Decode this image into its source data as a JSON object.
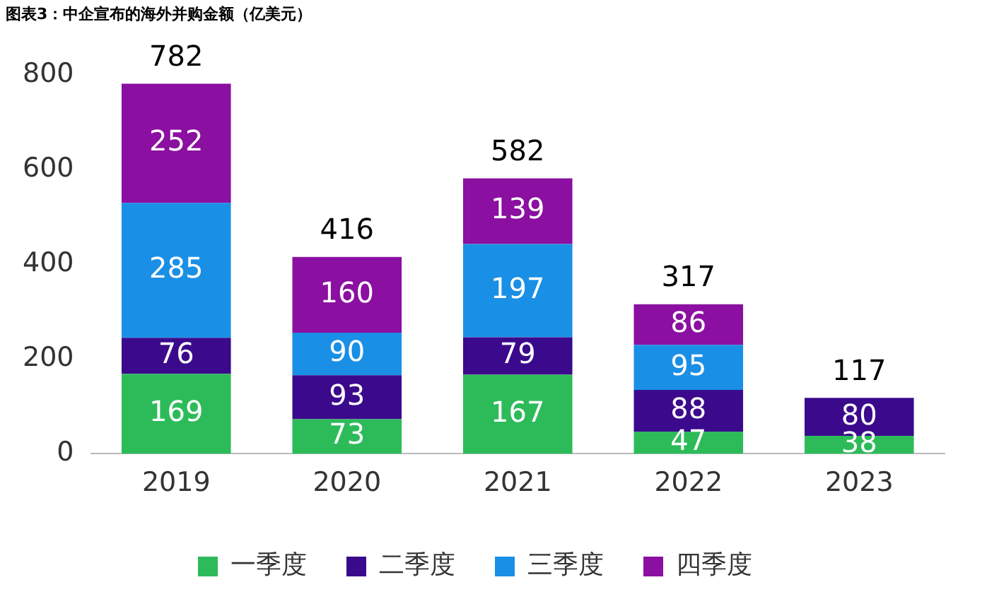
{
  "chart_data": {
    "type": "bar",
    "title": "图表3：中企宣布的海外并购金额（亿美元）",
    "categories": [
      "2019",
      "2020",
      "2021",
      "2022",
      "2023"
    ],
    "stacked": true,
    "series": [
      {
        "name": "一季度",
        "color": "#2dbb5a",
        "values": [
          169,
          73,
          167,
          47,
          38
        ]
      },
      {
        "name": "二季度",
        "color": "#3b0a8c",
        "values": [
          76,
          93,
          79,
          88,
          80
        ]
      },
      {
        "name": "三季度",
        "color": "#1a8fe6",
        "values": [
          285,
          90,
          197,
          95,
          null
        ]
      },
      {
        "name": "四季度",
        "color": "#8b0fa0",
        "values": [
          252,
          160,
          139,
          86,
          null
        ]
      }
    ],
    "totals": [
      "782",
      "416",
      "582",
      "317",
      "117"
    ],
    "data_labels": true,
    "ylim": [
      0,
      800
    ],
    "yticks": [
      0,
      200,
      400,
      600,
      800
    ],
    "grid": false,
    "legend": "bottom"
  }
}
